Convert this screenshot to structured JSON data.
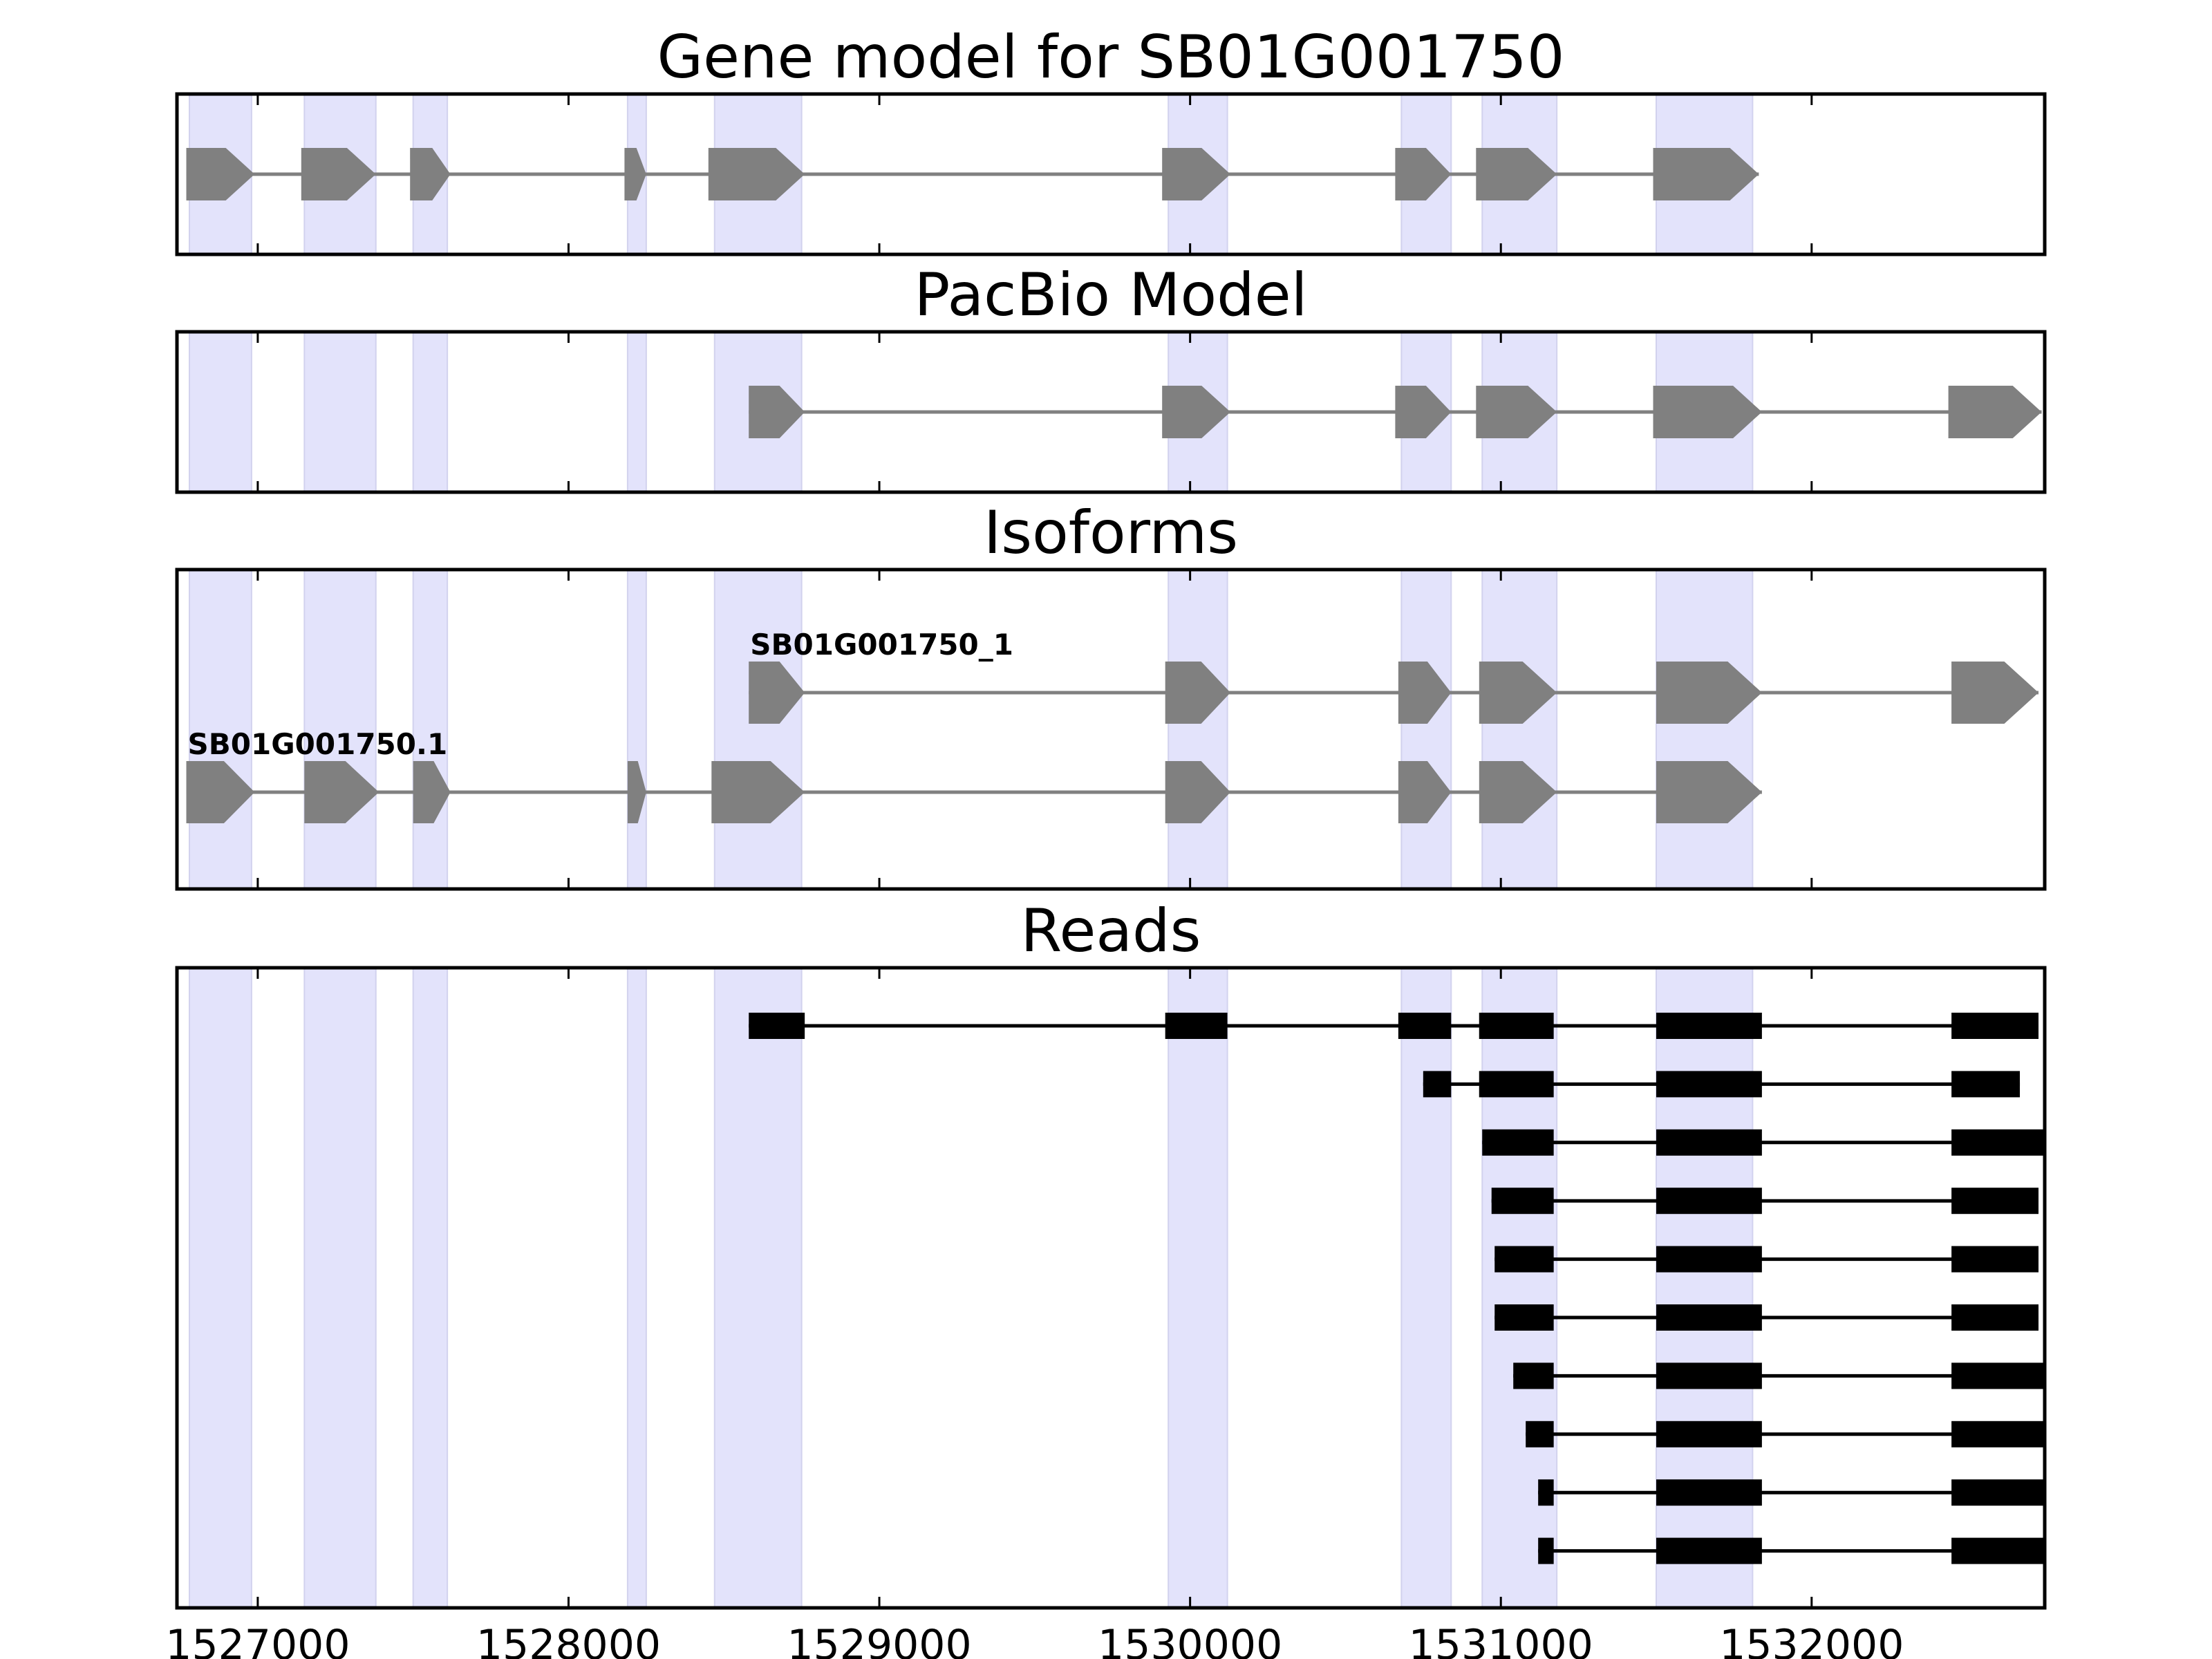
{
  "chart_data": {
    "type": "gene_structure",
    "title": "Gene model for SB01G001750",
    "x_range": [
      1526740,
      1532750
    ],
    "x_ticks": [
      1527000,
      1528000,
      1529000,
      1530000,
      1531000,
      1532000
    ],
    "x_tick_labels": [
      "1527000",
      "1528000",
      "1529000",
      "1530000",
      "1531000",
      "1532000"
    ],
    "colors": {
      "exon_highlight": "#e3e3fb",
      "gene_exon": "#808080",
      "intron_line": "#808080",
      "read": "#000000",
      "axes": "#000000"
    },
    "highlighted_exons": [
      [
        1526780,
        1526980
      ],
      [
        1527150,
        1527380
      ],
      [
        1527500,
        1527610
      ],
      [
        1528190,
        1528250
      ],
      [
        1528470,
        1528750
      ],
      [
        1529930,
        1530120
      ],
      [
        1530680,
        1530840
      ],
      [
        1530940,
        1531180
      ],
      [
        1531500,
        1531810
      ]
    ],
    "panels": [
      {
        "title": "Gene model for SB01G001750",
        "kind": "gene_model",
        "tracks": [
          {
            "label": "",
            "exons": [
              [
                1526770,
                1526990
              ],
              [
                1527140,
                1527380
              ],
              [
                1527490,
                1527620
              ],
              [
                1528180,
                1528250
              ],
              [
                1528450,
                1528760
              ],
              [
                1529910,
                1530130
              ],
              [
                1530660,
                1530840
              ],
              [
                1530920,
                1531180
              ],
              [
                1531490,
                1531830
              ]
            ]
          }
        ]
      },
      {
        "title": "PacBio Model",
        "kind": "gene_model",
        "tracks": [
          {
            "label": "",
            "exons": [
              [
                1528580,
                1528760
              ],
              [
                1529910,
                1530130
              ],
              [
                1530660,
                1530840
              ],
              [
                1530920,
                1531180
              ],
              [
                1531490,
                1531840
              ],
              [
                1532440,
                1532740
              ]
            ]
          }
        ]
      },
      {
        "title": "Isoforms",
        "kind": "gene_model",
        "tracks": [
          {
            "label": "SB01G001750_1",
            "exons": [
              [
                1528580,
                1528760
              ],
              [
                1529920,
                1530130
              ],
              [
                1530670,
                1530840
              ],
              [
                1530930,
                1531180
              ],
              [
                1531500,
                1531840
              ],
              [
                1532450,
                1532730
              ]
            ]
          },
          {
            "label": "SB01G001750.1",
            "exons": [
              [
                1526770,
                1526990
              ],
              [
                1527150,
                1527390
              ],
              [
                1527500,
                1527620
              ],
              [
                1528190,
                1528250
              ],
              [
                1528460,
                1528760
              ],
              [
                1529920,
                1530130
              ],
              [
                1530670,
                1530840
              ],
              [
                1530930,
                1531180
              ],
              [
                1531500,
                1531840
              ]
            ]
          }
        ]
      },
      {
        "title": "Reads",
        "kind": "reads",
        "tracks": [
          {
            "label": "",
            "exons": [
              [
                1528580,
                1528760
              ],
              [
                1529920,
                1530120
              ],
              [
                1530670,
                1530840
              ],
              [
                1530930,
                1531170
              ],
              [
                1531500,
                1531840
              ],
              [
                1532450,
                1532730
              ]
            ]
          },
          {
            "label": "",
            "exons": [
              [
                1530750,
                1530840
              ],
              [
                1530930,
                1531170
              ],
              [
                1531500,
                1531840
              ],
              [
                1532450,
                1532670
              ]
            ]
          },
          {
            "label": "",
            "exons": [
              [
                1530940,
                1531170
              ],
              [
                1531500,
                1531840
              ],
              [
                1532450,
                1532750
              ]
            ]
          },
          {
            "label": "",
            "exons": [
              [
                1530970,
                1531170
              ],
              [
                1531500,
                1531840
              ],
              [
                1532450,
                1532730
              ]
            ]
          },
          {
            "label": "",
            "exons": [
              [
                1530980,
                1531170
              ],
              [
                1531500,
                1531840
              ],
              [
                1532450,
                1532730
              ]
            ]
          },
          {
            "label": "",
            "exons": [
              [
                1530980,
                1531170
              ],
              [
                1531500,
                1531840
              ],
              [
                1532450,
                1532730
              ]
            ]
          },
          {
            "label": "",
            "exons": [
              [
                1531040,
                1531170
              ],
              [
                1531500,
                1531840
              ],
              [
                1532450,
                1532750
              ]
            ]
          },
          {
            "label": "",
            "exons": [
              [
                1531080,
                1531170
              ],
              [
                1531500,
                1531840
              ],
              [
                1532450,
                1532750
              ]
            ]
          },
          {
            "label": "",
            "exons": [
              [
                1531120,
                1531170
              ],
              [
                1531500,
                1531840
              ],
              [
                1532450,
                1532750
              ]
            ]
          },
          {
            "label": "",
            "exons": [
              [
                1531120,
                1531170
              ],
              [
                1531500,
                1531840
              ],
              [
                1532450,
                1532750
              ]
            ]
          }
        ]
      }
    ]
  }
}
